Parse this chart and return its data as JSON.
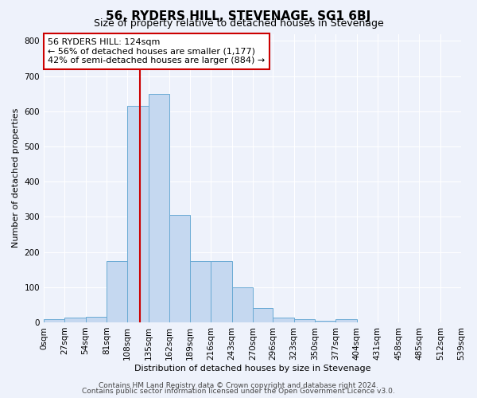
{
  "title": "56, RYDERS HILL, STEVENAGE, SG1 6BJ",
  "subtitle": "Size of property relative to detached houses in Stevenage",
  "xlabel": "Distribution of detached houses by size in Stevenage",
  "ylabel": "Number of detached properties",
  "bin_edges": [
    0,
    27,
    54,
    81,
    108,
    135,
    162,
    189,
    216,
    243,
    270,
    296,
    323,
    350,
    377,
    404,
    431,
    458,
    485,
    512,
    539
  ],
  "bar_heights": [
    8,
    13,
    15,
    175,
    615,
    650,
    305,
    175,
    175,
    100,
    40,
    13,
    8,
    5,
    8,
    0,
    0,
    0,
    0,
    0
  ],
  "bar_color": "#c5d8f0",
  "bar_edge_color": "#6aaad4",
  "vline_x": 124,
  "vline_color": "#cc0000",
  "ylim": [
    0,
    820
  ],
  "yticks": [
    0,
    100,
    200,
    300,
    400,
    500,
    600,
    700,
    800
  ],
  "annotation_text": "56 RYDERS HILL: 124sqm\n← 56% of detached houses are smaller (1,177)\n42% of semi-detached houses are larger (884) →",
  "annotation_box_facecolor": "#ffffff",
  "annotation_box_edgecolor": "#cc0000",
  "footer_line1": "Contains HM Land Registry data © Crown copyright and database right 2024.",
  "footer_line2": "Contains public sector information licensed under the Open Government Licence v3.0.",
  "background_color": "#eef2fb",
  "grid_color": "#ffffff",
  "title_fontsize": 11,
  "subtitle_fontsize": 9,
  "axis_label_fontsize": 8,
  "tick_fontsize": 7.5,
  "annotation_fontsize": 8,
  "footer_fontsize": 6.5
}
